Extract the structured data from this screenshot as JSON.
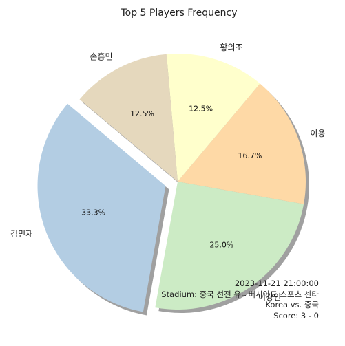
{
  "chart_data": {
    "type": "pie",
    "title": "Top 5 Players Frequency",
    "labels": [
      "김민재",
      "이강인",
      "이용",
      "황의조",
      "손흥민"
    ],
    "values": [
      33.3,
      25.0,
      16.7,
      12.5,
      12.5
    ],
    "pct_labels": [
      "33.3%",
      "25.0%",
      "16.7%",
      "12.5%",
      "12.5%"
    ],
    "colors": [
      "#b3cde3",
      "#ccebc5",
      "#fed9a6",
      "#ffffcc",
      "#e5d8bd"
    ],
    "explode": [
      true,
      false,
      false,
      false,
      false
    ],
    "shadow": true
  },
  "info": {
    "datetime": "2023-11-21 21:00:00",
    "stadium": "Stadium: 중국 선전 유니버시아드 스포츠 센타",
    "match": "Korea vs. 중국",
    "score": "Score: 3 - 0"
  }
}
